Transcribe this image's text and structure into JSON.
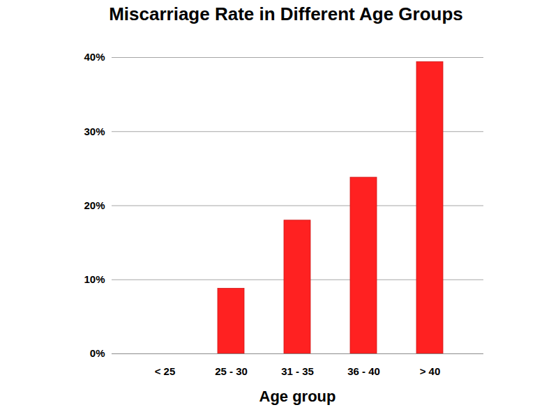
{
  "chart_data": {
    "type": "bar",
    "title": "Miscarriage Rate in Different Age Groups",
    "x_label": "Age group",
    "categories": [
      "< 25",
      "25 - 30",
      "31 - 35",
      "36 - 40",
      "> 40"
    ],
    "values": [
      0,
      8.8,
      18,
      23.8,
      39.4
    ],
    "color": "#ff2121",
    "ylim": [
      0,
      40
    ],
    "yticks": [
      {
        "value": 0,
        "label": "0%"
      },
      {
        "value": 10,
        "label": "10%"
      },
      {
        "value": 20,
        "label": "20%"
      },
      {
        "value": 30,
        "label": "30%"
      },
      {
        "value": 40,
        "label": "40%"
      }
    ],
    "grid": true
  }
}
